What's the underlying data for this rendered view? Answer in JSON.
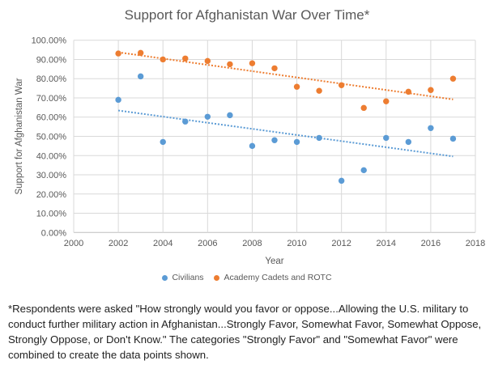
{
  "chart_data": {
    "type": "scatter",
    "title": "Support for Afghanistan War Over Time*",
    "xlabel": "Year",
    "ylabel": "Support for Afghanistan War",
    "xlim": [
      2000,
      2018
    ],
    "ylim": [
      0,
      100
    ],
    "x_ticks": [
      "2000",
      "2002",
      "2004",
      "2006",
      "2008",
      "2010",
      "2012",
      "2014",
      "2016",
      "2018"
    ],
    "y_ticks": [
      "0.00%",
      "10.00%",
      "20.00%",
      "30.00%",
      "40.00%",
      "50.00%",
      "60.00%",
      "70.00%",
      "80.00%",
      "90.00%",
      "100.00%"
    ],
    "grid": true,
    "legend_position": "bottom",
    "trendline": "linear, dotted",
    "x": [
      2002,
      2003,
      2004,
      2005,
      2006,
      2007,
      2008,
      2009,
      2010,
      2011,
      2012,
      2013,
      2014,
      2015,
      2016,
      2017
    ],
    "series": [
      {
        "name": "Civilians",
        "color": "#5B9BD5",
        "values": [
          69.0,
          81.2,
          47.1,
          57.7,
          60.2,
          61.0,
          45.0,
          48.0,
          47.1,
          49.2,
          26.9,
          32.4,
          49.2,
          47.1,
          54.3,
          48.8
        ]
      },
      {
        "name": "Academy Cadets and ROTC",
        "color": "#ED7D31",
        "values": [
          93.1,
          93.4,
          90.0,
          90.5,
          89.2,
          87.5,
          88.0,
          85.4,
          75.8,
          73.7,
          76.6,
          64.8,
          68.2,
          73.2,
          74.1,
          80.0
        ]
      }
    ]
  },
  "footnote": "*Respondents were asked \"How strongly would you favor or oppose...Allowing the U.S. military to conduct further military action in Afghanistan...Strongly Favor, Somewhat Favor, Somewhat Oppose, Strongly Oppose, or Don't Know.\" The categories \"Strongly Favor\" and \"Somewhat Favor\" were combined to create the data points shown."
}
